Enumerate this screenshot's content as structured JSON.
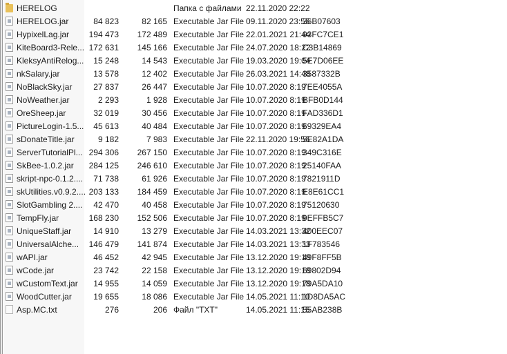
{
  "files": [
    {
      "name": "HERELOG",
      "size": "",
      "packed": "",
      "type": "Папка с файлами",
      "modified": "22.11.2020 22:22",
      "crc": "",
      "icon": "folder"
    },
    {
      "name": "HERELOG.jar",
      "size": "84 823",
      "packed": "82 165",
      "type": "Executable Jar File",
      "modified": "09.11.2020 23:55",
      "crc": "36B07603",
      "icon": "jar"
    },
    {
      "name": "HypixelLag.jar",
      "size": "194 473",
      "packed": "172 489",
      "type": "Executable Jar File",
      "modified": "22.01.2021 21:44",
      "crc": "93FC7CE1",
      "icon": "jar"
    },
    {
      "name": "KiteBoard3-Rele...",
      "size": "172 631",
      "packed": "145 166",
      "type": "Executable Jar File",
      "modified": "24.07.2020 18:22",
      "crc": "C3B14869",
      "icon": "jar"
    },
    {
      "name": "KleksyAntiRelog...",
      "size": "15 248",
      "packed": "14 543",
      "type": "Executable Jar File",
      "modified": "19.03.2020 19:04",
      "crc": "5E7D06EE",
      "icon": "jar"
    },
    {
      "name": "nkSalary.jar",
      "size": "13 578",
      "packed": "12 402",
      "type": "Executable Jar File",
      "modified": "26.03.2021 14:48",
      "crc": "3587332B",
      "icon": "jar"
    },
    {
      "name": "NoBlackSky.jar",
      "size": "27 837",
      "packed": "26 447",
      "type": "Executable Jar File",
      "modified": "10.07.2020 8:19",
      "crc": "7EE4055A",
      "icon": "jar"
    },
    {
      "name": "NoWeather.jar",
      "size": "2 293",
      "packed": "1 928",
      "type": "Executable Jar File",
      "modified": "10.07.2020 8:19",
      "crc": "BFB0D144",
      "icon": "jar"
    },
    {
      "name": "OreSheep.jar",
      "size": "32 019",
      "packed": "30 456",
      "type": "Executable Jar File",
      "modified": "10.07.2020 8:19",
      "crc": "FAD336D1",
      "icon": "jar"
    },
    {
      "name": "PictureLogin-1.5...",
      "size": "45 613",
      "packed": "40 484",
      "type": "Executable Jar File",
      "modified": "10.07.2020 8:19",
      "crc": "69329EA4",
      "icon": "jar"
    },
    {
      "name": "sDonateTitle.jar",
      "size": "9 182",
      "packed": "7 983",
      "type": "Executable Jar File",
      "modified": "22.11.2020 19:56",
      "crc": "5E82A1DA",
      "icon": "jar"
    },
    {
      "name": "ServerTutorialPl...",
      "size": "294 306",
      "packed": "267 150",
      "type": "Executable Jar File",
      "modified": "10.07.2020 8:19",
      "crc": "349C316E",
      "icon": "jar"
    },
    {
      "name": "SkBee-1.0.2.jar",
      "size": "284 125",
      "packed": "246 610",
      "type": "Executable Jar File",
      "modified": "10.07.2020 8:19",
      "crc": "25140FAA",
      "icon": "jar"
    },
    {
      "name": "skript-npc-0.1.2....",
      "size": "71 738",
      "packed": "61 926",
      "type": "Executable Jar File",
      "modified": "10.07.2020 8:19",
      "crc": "7821911D",
      "icon": "jar"
    },
    {
      "name": "skUtilities.v0.9.2....",
      "size": "203 133",
      "packed": "184 459",
      "type": "Executable Jar File",
      "modified": "10.07.2020 8:19",
      "crc": "E8E61CC1",
      "icon": "jar"
    },
    {
      "name": "SlotGambling 2....",
      "size": "42 470",
      "packed": "40 458",
      "type": "Executable Jar File",
      "modified": "10.07.2020 8:19",
      "crc": "75120630",
      "icon": "jar"
    },
    {
      "name": "TempFly.jar",
      "size": "168 230",
      "packed": "152 506",
      "type": "Executable Jar File",
      "modified": "10.07.2020 8:19",
      "crc": "9EFFB5C7",
      "icon": "jar"
    },
    {
      "name": "UniqueStaff.jar",
      "size": "14 910",
      "packed": "13 279",
      "type": "Executable Jar File",
      "modified": "14.03.2021 13:32",
      "crc": "400EEC07",
      "icon": "jar"
    },
    {
      "name": "UniversalAlche...",
      "size": "146 479",
      "packed": "141 874",
      "type": "Executable Jar File",
      "modified": "14.03.2021 13:33",
      "crc": "1F783546",
      "icon": "jar"
    },
    {
      "name": "wAPI.jar",
      "size": "46 452",
      "packed": "42 945",
      "type": "Executable Jar File",
      "modified": "13.12.2020 19:18",
      "crc": "49F8FF5B",
      "icon": "jar"
    },
    {
      "name": "wCode.jar",
      "size": "23 742",
      "packed": "22 158",
      "type": "Executable Jar File",
      "modified": "13.12.2020 19:18",
      "crc": "69802D94",
      "icon": "jar"
    },
    {
      "name": "wCustomText.jar",
      "size": "14 955",
      "packed": "14 059",
      "type": "Executable Jar File",
      "modified": "13.12.2020 19:18",
      "crc": "79A5DA10",
      "icon": "jar"
    },
    {
      "name": "WoodCutter.jar",
      "size": "19 655",
      "packed": "18 086",
      "type": "Executable Jar File",
      "modified": "14.05.2021 11:10",
      "crc": "1D8DA5AC",
      "icon": "jar"
    },
    {
      "name": "Asp.MC.txt",
      "size": "276",
      "packed": "206",
      "type": "Файл \"TXT\"",
      "modified": "14.05.2021 11:15",
      "crc": "55AB238B",
      "icon": "txt"
    }
  ]
}
